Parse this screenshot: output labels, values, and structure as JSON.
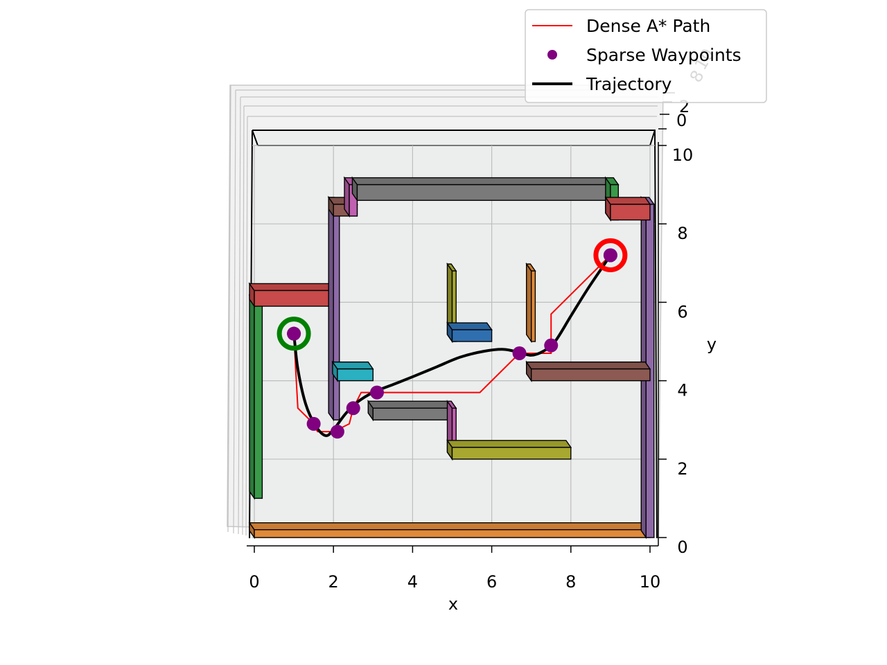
{
  "chart_data": {
    "type": "line",
    "projection": "3d-view-from-top",
    "xlabel": "x",
    "ylabel": "y",
    "xlim": [
      0,
      10
    ],
    "ylim": [
      0,
      10
    ],
    "x_ticks": [
      "0",
      "2",
      "4",
      "6",
      "8",
      "10"
    ],
    "y_ticks": [
      "0",
      "2",
      "4",
      "6",
      "8",
      "10"
    ],
    "z_ticks_visible": [
      "0",
      "2",
      "8",
      "10"
    ],
    "grid": true,
    "legend_position": "top-right",
    "legend": [
      {
        "label": "Dense A* Path",
        "color": "#ff0000",
        "style": "line"
      },
      {
        "label": "Sparse Waypoints",
        "color": "#800080",
        "style": "marker"
      },
      {
        "label": "Trajectory",
        "color": "#000000",
        "style": "thick-line"
      }
    ],
    "start": {
      "x": 1.0,
      "y": 5.2,
      "color": "#008000"
    },
    "goal": {
      "x": 9.0,
      "y": 7.2,
      "color": "#ff0000"
    },
    "dense_astar_path": {
      "x": [
        1.0,
        1.05,
        1.1,
        1.4,
        1.6,
        2.0,
        2.4,
        2.5,
        2.7,
        3.1,
        5.7,
        6.7,
        7.5,
        7.5,
        9.0
      ],
      "y": [
        5.2,
        4.2,
        3.3,
        3.0,
        2.7,
        2.7,
        2.9,
        3.3,
        3.7,
        3.7,
        3.7,
        4.7,
        4.7,
        5.7,
        7.2
      ]
    },
    "sparse_waypoints": {
      "x": [
        1.0,
        1.5,
        2.1,
        2.5,
        3.1,
        6.7,
        7.5,
        9.0
      ],
      "y": [
        5.2,
        2.9,
        2.7,
        3.3,
        3.7,
        4.7,
        4.9,
        7.2
      ]
    },
    "trajectory": {
      "x": [
        1.0,
        1.1,
        1.3,
        1.55,
        1.8,
        2.0,
        2.3,
        2.6,
        3.0,
        3.5,
        4.0,
        4.6,
        5.2,
        5.8,
        6.3,
        6.7,
        7.0,
        7.3,
        7.6,
        8.0,
        8.4,
        8.8,
        9.0
      ],
      "y": [
        5.2,
        4.3,
        3.4,
        2.85,
        2.6,
        2.75,
        3.15,
        3.45,
        3.7,
        3.9,
        4.1,
        4.35,
        4.6,
        4.75,
        4.8,
        4.72,
        4.65,
        4.75,
        5.0,
        5.65,
        6.3,
        6.9,
        7.2
      ]
    },
    "obstacles": [
      {
        "x": [
          0.0,
          10.0
        ],
        "y": [
          0.0,
          0.2
        ],
        "color": "#e08a3a"
      },
      {
        "x": [
          9.9,
          10.1
        ],
        "y": [
          0.0,
          8.5
        ],
        "color": "#8e6aa8"
      },
      {
        "x": [
          0.0,
          0.2
        ],
        "y": [
          1.0,
          6.0
        ],
        "color": "#3a9a4a"
      },
      {
        "x": [
          0.0,
          2.0
        ],
        "y": [
          5.9,
          6.3
        ],
        "color": "#c84a4a"
      },
      {
        "x": [
          2.0,
          2.15
        ],
        "y": [
          3.0,
          8.5
        ],
        "color": "#8e6aa8"
      },
      {
        "x": [
          2.0,
          2.6
        ],
        "y": [
          8.2,
          8.5
        ],
        "color": "#8c5a52"
      },
      {
        "x": [
          2.4,
          2.6
        ],
        "y": [
          8.2,
          9.0
        ],
        "color": "#c060b0"
      },
      {
        "x": [
          2.6,
          9.0
        ],
        "y": [
          8.6,
          9.0
        ],
        "color": "#7a7a7a"
      },
      {
        "x": [
          9.0,
          9.2
        ],
        "y": [
          8.1,
          9.0
        ],
        "color": "#3a9a4a"
      },
      {
        "x": [
          9.0,
          10.0
        ],
        "y": [
          8.1,
          8.5
        ],
        "color": "#c84a4a"
      },
      {
        "x": [
          2.1,
          3.0
        ],
        "y": [
          4.0,
          4.3
        ],
        "color": "#2ab0c0"
      },
      {
        "x": [
          3.0,
          5.0
        ],
        "y": [
          3.0,
          3.3
        ],
        "color": "#7a7a7a"
      },
      {
        "x": [
          5.0,
          5.1
        ],
        "y": [
          2.0,
          3.3
        ],
        "color": "#c060b0"
      },
      {
        "x": [
          5.0,
          8.0
        ],
        "y": [
          2.0,
          2.3
        ],
        "color": "#a8a830"
      },
      {
        "x": [
          5.0,
          5.1
        ],
        "y": [
          5.0,
          6.8
        ],
        "color": "#a8a830"
      },
      {
        "x": [
          5.0,
          6.0
        ],
        "y": [
          5.0,
          5.3
        ],
        "color": "#2f6fb0"
      },
      {
        "x": [
          7.0,
          7.1
        ],
        "y": [
          5.0,
          6.8
        ],
        "color": "#e08a3a"
      },
      {
        "x": [
          7.0,
          10.0
        ],
        "y": [
          4.0,
          4.3
        ],
        "color": "#8c5a52"
      }
    ]
  }
}
